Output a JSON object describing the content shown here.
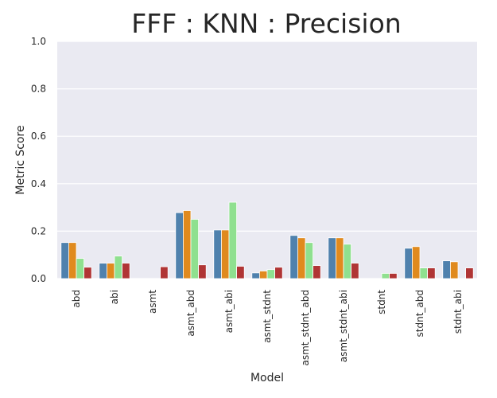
{
  "chart_data": {
    "type": "bar",
    "title": "FFF : KNN : Precision",
    "xlabel": "Model",
    "ylabel": "Metric Score",
    "ylim": [
      0,
      1.0
    ],
    "yticks": [
      "0.0",
      "0.2",
      "0.4",
      "0.6",
      "0.8",
      "1.0"
    ],
    "grid": true,
    "legend": "none",
    "categories": [
      "abd",
      "abi",
      "asmt",
      "asmt_abd",
      "asmt_abi",
      "asmt_stdnt",
      "asmt_stdnt_abd",
      "asmt_stdnt_abi",
      "stdnt",
      "stdnt_abd",
      "stdnt_abi"
    ],
    "series": [
      {
        "color": "#4f81ad",
        "values": [
          0.152,
          0.065,
          0.0,
          0.278,
          0.205,
          0.024,
          0.182,
          0.172,
          0.0,
          0.128,
          0.075
        ]
      },
      {
        "color": "#e08a1e",
        "values": [
          0.152,
          0.065,
          0.0,
          0.287,
          0.205,
          0.032,
          0.172,
          0.172,
          0.0,
          0.135,
          0.071
        ]
      },
      {
        "color": "#8fe08f",
        "values": [
          0.085,
          0.095,
          0.0,
          0.25,
          0.322,
          0.038,
          0.152,
          0.145,
          0.022,
          0.045,
          0.0
        ]
      },
      {
        "color": "#b03535",
        "values": [
          0.048,
          0.065,
          0.05,
          0.058,
          0.052,
          0.048,
          0.055,
          0.065,
          0.022,
          0.045,
          0.045
        ]
      }
    ]
  }
}
